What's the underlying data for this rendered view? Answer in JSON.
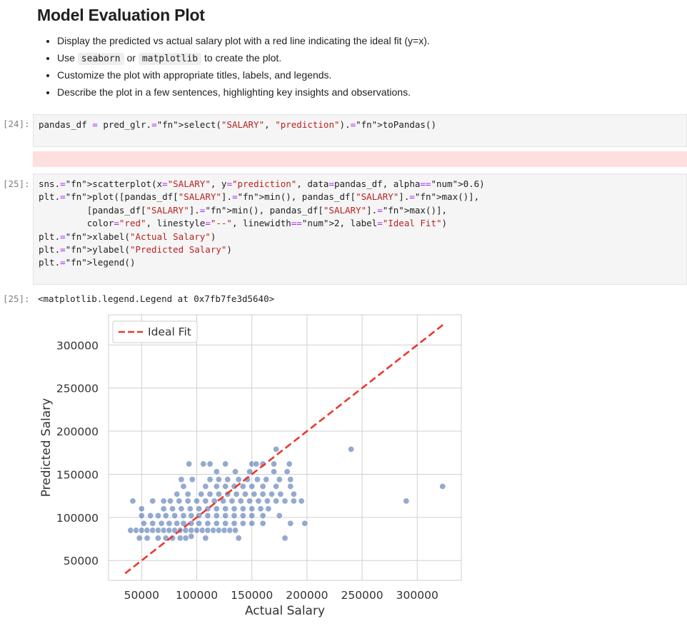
{
  "markdown": {
    "title": "Model Evaluation Plot",
    "bullets": [
      {
        "text": "Display the predicted vs actual salary plot with a red line indicating the ideal fit (y=x)."
      },
      {
        "pre": "Use ",
        "code1": "seaborn",
        "mid": " or ",
        "code2": "matplotlib",
        "post": " to create the plot."
      },
      {
        "text": "Customize the plot with appropriate titles, labels, and legends."
      },
      {
        "text": "Describe the plot in a few sentences, highlighting key insights and observations."
      }
    ]
  },
  "cells": {
    "c24": {
      "prompt": "[24]:",
      "code": "pandas_df = pred_glr.select(\"SALARY\", \"prediction\").toPandas()"
    },
    "c25": {
      "prompt": "[25]:",
      "lines": [
        "sns.scatterplot(x=\"SALARY\", y=\"prediction\", data=pandas_df, alpha=0.6)",
        "plt.plot([pandas_df[\"SALARY\"].min(), pandas_df[\"SALARY\"].max()],",
        "         [pandas_df[\"SALARY\"].min(), pandas_df[\"SALARY\"].max()],",
        "         color=\"red\", linestyle=\"--\", linewidth=2, label=\"Ideal Fit\")",
        "plt.xlabel(\"Actual Salary\")",
        "plt.ylabel(\"Predicted Salary\")",
        "plt.legend()"
      ],
      "out_prompt": "[25]:",
      "output_text": "<matplotlib.legend.Legend at 0x7fb7fe3d5640>"
    }
  },
  "colors": {
    "point": "#4c72b0",
    "ideal_line": "#e8392f",
    "grid": "#d0d0d0"
  },
  "chart_data": {
    "type": "scatter",
    "xlabel": "Actual Salary",
    "ylabel": "Predicted Salary",
    "xlim": [
      20000,
      340000
    ],
    "ylim": [
      27000,
      335000
    ],
    "xticks": [
      50000,
      100000,
      150000,
      200000,
      250000,
      300000
    ],
    "yticks": [
      50000,
      100000,
      150000,
      200000,
      250000,
      300000
    ],
    "xtick_labels": [
      "50000",
      "100000",
      "150000",
      "200000",
      "250000",
      "300000"
    ],
    "ytick_labels": [
      "50000",
      "100000",
      "150000",
      "200000",
      "250000",
      "300000"
    ],
    "grid": true,
    "legend": {
      "position": "top-left",
      "entries": [
        "Ideal Fit"
      ]
    },
    "ideal_fit": {
      "x": [
        35000,
        325000
      ],
      "y": [
        35000,
        325000
      ],
      "linestyle": "dashed",
      "color": "red"
    },
    "points": [
      [
        40000,
        85000
      ],
      [
        45000,
        85000
      ],
      [
        50000,
        85000
      ],
      [
        55000,
        85000
      ],
      [
        60000,
        85000
      ],
      [
        65000,
        85000
      ],
      [
        70000,
        85000
      ],
      [
        75000,
        85000
      ],
      [
        80000,
        85000
      ],
      [
        85000,
        85000
      ],
      [
        90000,
        85000
      ],
      [
        95000,
        85000
      ],
      [
        100000,
        85000
      ],
      [
        105000,
        85000
      ],
      [
        110000,
        85000
      ],
      [
        115000,
        85000
      ],
      [
        120000,
        85000
      ],
      [
        125000,
        85000
      ],
      [
        130000,
        85000
      ],
      [
        135000,
        85000
      ],
      [
        48000,
        76000
      ],
      [
        55000,
        76000
      ],
      [
        65000,
        76000
      ],
      [
        72000,
        76000
      ],
      [
        78000,
        76000
      ],
      [
        85000,
        76000
      ],
      [
        90000,
        76000
      ],
      [
        95000,
        78000
      ],
      [
        108000,
        76000
      ],
      [
        138000,
        76000
      ],
      [
        180000,
        76000
      ],
      [
        52000,
        93000
      ],
      [
        60000,
        93000
      ],
      [
        68000,
        93000
      ],
      [
        75000,
        93000
      ],
      [
        82000,
        93000
      ],
      [
        88000,
        93000
      ],
      [
        95000,
        93000
      ],
      [
        102000,
        93000
      ],
      [
        110000,
        93000
      ],
      [
        118000,
        93000
      ],
      [
        126000,
        93000
      ],
      [
        134000,
        93000
      ],
      [
        142000,
        93000
      ],
      [
        150000,
        93000
      ],
      [
        160000,
        93000
      ],
      [
        185000,
        93000
      ],
      [
        198000,
        93000
      ],
      [
        50000,
        102000
      ],
      [
        58000,
        102000
      ],
      [
        65000,
        102000
      ],
      [
        72000,
        102000
      ],
      [
        80000,
        102000
      ],
      [
        88000,
        102000
      ],
      [
        95000,
        102000
      ],
      [
        102000,
        102000
      ],
      [
        110000,
        102000
      ],
      [
        118000,
        102000
      ],
      [
        126000,
        102000
      ],
      [
        134000,
        102000
      ],
      [
        142000,
        102000
      ],
      [
        150000,
        102000
      ],
      [
        160000,
        102000
      ],
      [
        175000,
        102000
      ],
      [
        50000,
        110000
      ],
      [
        70000,
        110000
      ],
      [
        78000,
        110000
      ],
      [
        86000,
        110000
      ],
      [
        94000,
        110000
      ],
      [
        102000,
        110000
      ],
      [
        110000,
        110000
      ],
      [
        118000,
        110000
      ],
      [
        126000,
        110000
      ],
      [
        134000,
        110000
      ],
      [
        142000,
        110000
      ],
      [
        150000,
        110000
      ],
      [
        158000,
        110000
      ],
      [
        165000,
        110000
      ],
      [
        42000,
        119000
      ],
      [
        60000,
        119000
      ],
      [
        70000,
        119000
      ],
      [
        76000,
        119000
      ],
      [
        84000,
        119000
      ],
      [
        92000,
        119000
      ],
      [
        100000,
        119000
      ],
      [
        108000,
        119000
      ],
      [
        116000,
        119000
      ],
      [
        124000,
        119000
      ],
      [
        132000,
        119000
      ],
      [
        140000,
        119000
      ],
      [
        148000,
        119000
      ],
      [
        156000,
        119000
      ],
      [
        164000,
        119000
      ],
      [
        172000,
        119000
      ],
      [
        180000,
        119000
      ],
      [
        188000,
        119000
      ],
      [
        195000,
        119000
      ],
      [
        290000,
        119000
      ],
      [
        82000,
        127000
      ],
      [
        92000,
        127000
      ],
      [
        104000,
        127000
      ],
      [
        112000,
        127000
      ],
      [
        120000,
        127000
      ],
      [
        128000,
        127000
      ],
      [
        136000,
        127000
      ],
      [
        144000,
        127000
      ],
      [
        152000,
        127000
      ],
      [
        160000,
        127000
      ],
      [
        168000,
        127000
      ],
      [
        176000,
        127000
      ],
      [
        188000,
        127000
      ],
      [
        88000,
        136000
      ],
      [
        108000,
        136000
      ],
      [
        118000,
        136000
      ],
      [
        126000,
        136000
      ],
      [
        134000,
        136000
      ],
      [
        142000,
        136000
      ],
      [
        150000,
        136000
      ],
      [
        160000,
        136000
      ],
      [
        172000,
        136000
      ],
      [
        185000,
        136000
      ],
      [
        323000,
        136000
      ],
      [
        86000,
        144000
      ],
      [
        96000,
        144000
      ],
      [
        112000,
        144000
      ],
      [
        120000,
        144000
      ],
      [
        128000,
        144000
      ],
      [
        138000,
        144000
      ],
      [
        146000,
        144000
      ],
      [
        155000,
        144000
      ],
      [
        163000,
        144000
      ],
      [
        175000,
        144000
      ],
      [
        185000,
        144000
      ],
      [
        118000,
        153000
      ],
      [
        135000,
        153000
      ],
      [
        148000,
        153000
      ],
      [
        170000,
        153000
      ],
      [
        182000,
        153000
      ],
      [
        93000,
        162000
      ],
      [
        106000,
        162000
      ],
      [
        112000,
        162000
      ],
      [
        126000,
        162000
      ],
      [
        150000,
        162000
      ],
      [
        154000,
        162000
      ],
      [
        160000,
        162000
      ],
      [
        170000,
        162000
      ],
      [
        184000,
        162000
      ],
      [
        172000,
        179000
      ],
      [
        240000,
        179000
      ]
    ]
  }
}
